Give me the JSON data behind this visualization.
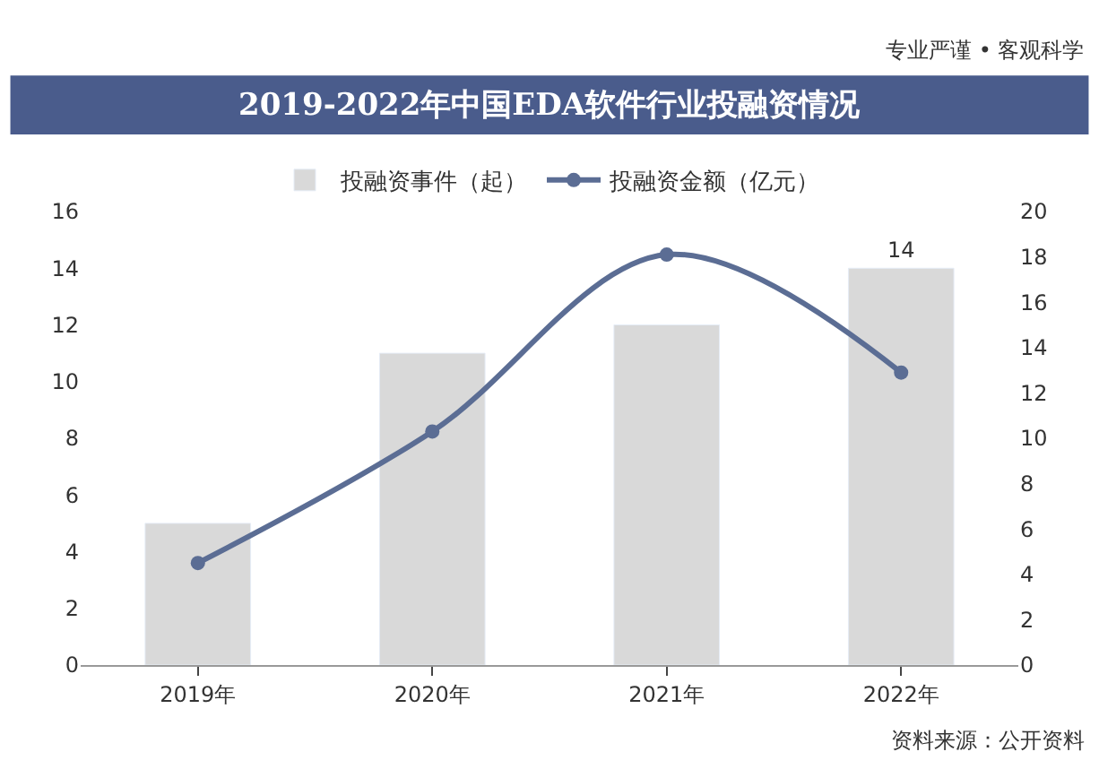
{
  "chart_data": {
    "type": "bar",
    "title": "2019-2022年中国EDA软件行业投融资情况",
    "annotations": [
      "专业严谨 • 客观科学",
      "资料来源：公开资料"
    ],
    "categories": [
      "2019年",
      "2020年",
      "2021年",
      "2022年"
    ],
    "series": [
      {
        "name": "投融资事件（起）",
        "color": "#d9d9d9",
        "values": [
          5,
          11,
          12,
          14
        ],
        "value_labels": [
          null,
          null,
          null,
          "14"
        ]
      },
      {
        "name": "投融资金额（亿元）",
        "type": "line",
        "axis": "y2",
        "color": "#5b6d94",
        "values": [
          4.5,
          10.3,
          18.1,
          12.9
        ],
        "marker": "circle",
        "line_style": "solid"
      }
    ],
    "ylim": [
      0,
      16
    ],
    "yticks": [
      0,
      2,
      4,
      6,
      8,
      10,
      12,
      14,
      16
    ],
    "y2lim": [
      0,
      20
    ],
    "y2ticks": [
      0,
      2,
      4,
      6,
      8,
      10,
      12,
      14,
      16,
      18,
      20
    ],
    "legend": "top"
  }
}
